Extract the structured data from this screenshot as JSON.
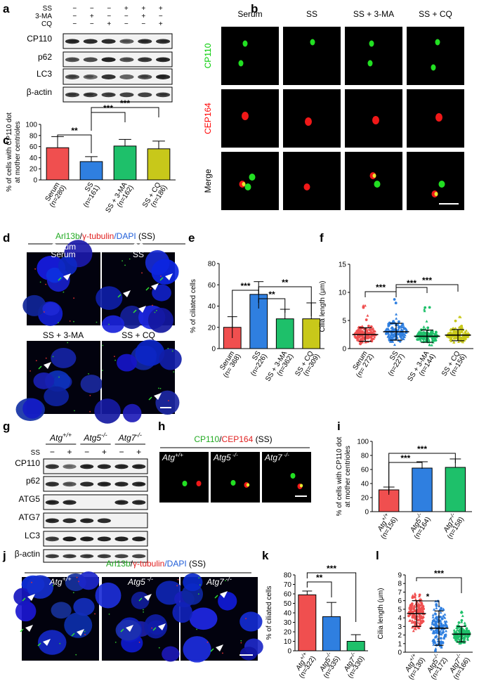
{
  "panels": {
    "a": {
      "label": "a",
      "conditions": [
        {
          "name": "SS",
          "signs": [
            "−",
            "−",
            "−",
            "+",
            "+",
            "+"
          ]
        },
        {
          "name": "3-MA",
          "signs": [
            "−",
            "+",
            "−",
            "−",
            "+",
            "−"
          ]
        },
        {
          "name": "CQ",
          "signs": [
            "−",
            "−",
            "+",
            "−",
            "−",
            "+"
          ]
        }
      ],
      "blots": [
        "CP110",
        "p62",
        "LC3",
        "β-actin"
      ]
    },
    "b": {
      "label": "b",
      "columns": [
        "Serum",
        "SS",
        "SS + 3-MA",
        "SS + CQ"
      ],
      "rows": [
        {
          "name": "CP110",
          "color": "#00cc00"
        },
        {
          "name": "CEP164",
          "color": "#ff0000"
        },
        {
          "name": "Merge",
          "color": "#000000"
        }
      ]
    },
    "c": {
      "label": "c"
    },
    "d": {
      "label": "d",
      "header": {
        "green": "Arl13b",
        "red": "γ-tubulin",
        "blue": "/DAPI",
        "suffix": " (SS)"
      },
      "tiles": [
        "Serum",
        "SS",
        "SS + 3-MA",
        "SS + CQ"
      ]
    },
    "e": {
      "label": "e"
    },
    "f": {
      "label": "f"
    },
    "g": {
      "label": "g",
      "genotypes": [
        {
          "base": "Atg",
          "sup": "+/+"
        },
        {
          "base": "Atg5",
          "sup": "-/-"
        },
        {
          "base": "Atg7",
          "sup": "-/-"
        }
      ],
      "ss_label": "SS",
      "ss_signs": [
        "−",
        "+",
        "−",
        "+",
        "−",
        "+"
      ],
      "blots": [
        "CP110",
        "p62",
        "ATG5",
        "ATG7",
        "LC3",
        "β-actin"
      ]
    },
    "h": {
      "label": "h",
      "header": {
        "green": "CP110",
        "red": "CEP164",
        "suffix": " (SS)"
      },
      "tiles": [
        {
          "base": "Atg",
          "sup": "+/+"
        },
        {
          "base": "Atg5",
          "sup": " -/-"
        },
        {
          "base": "Atg7",
          "sup": " -/-"
        }
      ]
    },
    "i": {
      "label": "i"
    },
    "j": {
      "label": "j",
      "header": {
        "green": "Arl13b",
        "red": "γ-tubulin",
        "blue": "/DAPI",
        "suffix": " (SS)"
      },
      "tiles": [
        {
          "base": "Atg",
          "sup": "+/+"
        },
        {
          "base": "Atg5",
          "sup": " -/-"
        },
        {
          "base": "Atg7",
          "sup": " -/-"
        }
      ]
    },
    "k": {
      "label": "k"
    },
    "l": {
      "label": "l"
    }
  },
  "chart_data": [
    {
      "id": "c",
      "type": "bar",
      "ylabel": [
        "% of cells with CP110 dot",
        "at mother centrioles"
      ],
      "ylim": [
        0,
        100
      ],
      "yticks": [
        0,
        20,
        40,
        60,
        80,
        100
      ],
      "categories": [
        "Serum\n(n=280)",
        "SS\n(n=161)",
        "SS + 3-MA\n(n=162)",
        "SS + CQ\n(n=186)"
      ],
      "values": [
        58,
        33,
        61,
        56
      ],
      "errors": [
        20,
        9,
        12,
        14
      ],
      "colors": [
        "#f04f4f",
        "#2f7fe0",
        "#1ec06a",
        "#c8c81a"
      ],
      "significance": [
        {
          "from": 0,
          "to": 1,
          "label": "**"
        },
        {
          "from": 1,
          "to": 2,
          "label": "***"
        },
        {
          "from": 1,
          "to": 3,
          "label": "***"
        }
      ]
    },
    {
      "id": "e",
      "type": "bar",
      "ylabel": [
        "% of ciliated cells"
      ],
      "ylim": [
        0,
        80
      ],
      "yticks": [
        0,
        20,
        40,
        60,
        80
      ],
      "categories": [
        "Serum\n(n= 368)",
        "SS\n(n=226)",
        "SS + 3-MA\n(n=362)",
        "SS + CQ\n(n=309)"
      ],
      "values": [
        20,
        51,
        28,
        28
      ],
      "errors": [
        10,
        12,
        9,
        15
      ],
      "colors": [
        "#f04f4f",
        "#2f7fe0",
        "#1ec06a",
        "#c8c81a"
      ],
      "significance": [
        {
          "from": 0,
          "to": 1,
          "label": "***"
        },
        {
          "from": 1,
          "to": 2,
          "label": "**"
        },
        {
          "from": 1,
          "to": 3,
          "label": "**"
        }
      ]
    },
    {
      "id": "f",
      "type": "scatter",
      "ylabel": [
        "Cilia length (μm)"
      ],
      "ylim": [
        0,
        15
      ],
      "yticks": [
        0,
        5,
        10,
        15
      ],
      "categories": [
        "Serum\n(n= 272)",
        "SS\n(n=227)",
        "SS + 3-MA\n(n=144)",
        "SS + CQ\n(n=156)"
      ],
      "means": [
        2.5,
        3.0,
        2.2,
        2.4
      ],
      "sd": [
        1.2,
        1.5,
        1.1,
        1.0
      ],
      "max": [
        8.5,
        9.5,
        8.5,
        6.5
      ],
      "colors": [
        "#f04f4f",
        "#2f7fe0",
        "#1ec06a",
        "#c8c81a"
      ],
      "significance": [
        {
          "from": 0,
          "to": 1,
          "label": "***"
        },
        {
          "from": 1,
          "to": 2,
          "label": "***"
        },
        {
          "from": 1,
          "to": 3,
          "label": "***"
        }
      ]
    },
    {
      "id": "i",
      "type": "bar",
      "ylabel": [
        "% of cells with CP110 dot",
        "at mother centrioles"
      ],
      "ylim": [
        0,
        100
      ],
      "yticks": [
        0,
        20,
        40,
        60,
        80,
        100
      ],
      "categories": [
        "Atg+/+\n(n=156)",
        "Atg5-/-\n(n=164)",
        "Atg7-/-\n(n=158)"
      ],
      "values": [
        31,
        62,
        63
      ],
      "errors": [
        4,
        9,
        12
      ],
      "colors": [
        "#f04f4f",
        "#2f7fe0",
        "#1ec06a"
      ],
      "significance": [
        {
          "from": 0,
          "to": 1,
          "label": "***"
        },
        {
          "from": 0,
          "to": 2,
          "label": "***"
        }
      ]
    },
    {
      "id": "k",
      "type": "bar",
      "ylabel": [
        "% of ciliated cells"
      ],
      "ylim": [
        0,
        80
      ],
      "yticks": [
        0,
        10,
        20,
        30,
        40,
        50,
        60,
        70,
        80
      ],
      "categories": [
        "Atg+/+\n(n=322)",
        "Atg5-/-\n(n=335)",
        "Atg7-/-\n(n=330)"
      ],
      "values": [
        59,
        36,
        10
      ],
      "errors": [
        4,
        15,
        7
      ],
      "colors": [
        "#f04f4f",
        "#2f7fe0",
        "#1ec06a"
      ],
      "significance": [
        {
          "from": 0,
          "to": 1,
          "label": "**"
        },
        {
          "from": 0,
          "to": 2,
          "label": "***"
        }
      ]
    },
    {
      "id": "l",
      "type": "scatter",
      "ylabel": [
        "Cilia length (μm)"
      ],
      "ylim": [
        0,
        9
      ],
      "yticks": [
        0,
        1,
        2,
        3,
        4,
        5,
        6,
        7,
        8,
        9
      ],
      "categories": [
        "Atg+/+\n(n=130)",
        "Atg5-/-\n(n=172)",
        "Atg7-/-\n(n=166)"
      ],
      "means": [
        4.5,
        2.8,
        2.1
      ],
      "sd": [
        1.5,
        2.0,
        0.9
      ],
      "max": [
        8.2,
        6.5,
        4.8
      ],
      "colors": [
        "#f04f4f",
        "#2f7fe0",
        "#1ec06a"
      ],
      "significance": [
        {
          "from": 0,
          "to": 1,
          "label": "*"
        },
        {
          "from": 0,
          "to": 2,
          "label": "***"
        }
      ]
    }
  ]
}
